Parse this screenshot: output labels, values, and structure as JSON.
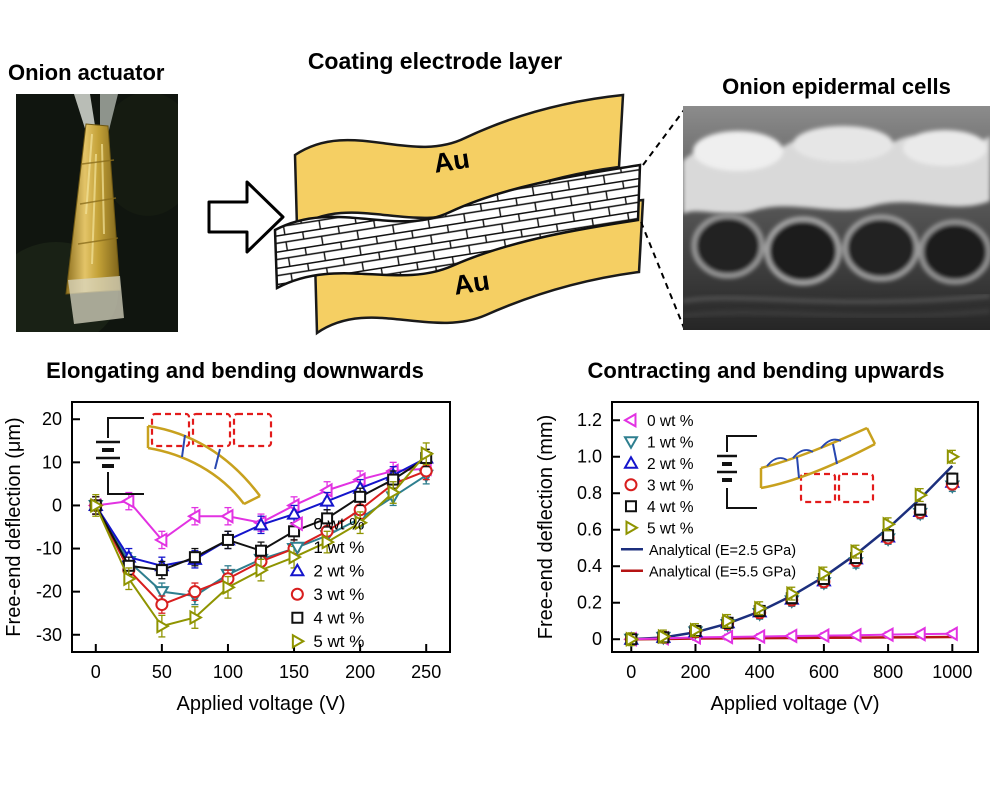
{
  "colors": {
    "gold": "#f5cf63",
    "magenta": "#e232e2",
    "teal": "#2e7f8f",
    "blue": "#1414cc",
    "red": "#d81e1e",
    "black": "#111111",
    "olive": "#8f9400",
    "nav_blue": "#1c2f7d",
    "dark_red": "#b51313"
  },
  "top": {
    "photo_label": "Onion actuator",
    "schematic_title": "Coating electrode layer",
    "au_label_top": "Au",
    "au_label_bottom": "Au",
    "sem_label": "Onion epidermal cells"
  },
  "chart_data": [
    {
      "type": "line",
      "title": "Elongating and bending downwards",
      "xlabel": "Applied voltage (V)",
      "ylabel": "Free-end deflection (μm)",
      "xlim": [
        -18,
        268
      ],
      "ylim": [
        -34,
        24
      ],
      "xticks": [
        "0",
        "50",
        "100",
        "150",
        "200",
        "250"
      ],
      "yticks": [
        "-30",
        "-20",
        "-10",
        "0",
        "10",
        "20"
      ],
      "grid": false,
      "legend_pos": {
        "fx": 0.575,
        "fy": 0.44
      },
      "x": [
        0,
        25,
        50,
        75,
        100,
        125,
        150,
        175,
        200,
        225,
        250
      ],
      "series": [
        {
          "name": "0 wt %",
          "marker": "triangle-left",
          "color_key": "magenta",
          "err": 2,
          "values": [
            0,
            1,
            -8,
            -2.5,
            -2.5,
            -4,
            0,
            3.5,
            6,
            8,
            8.5
          ]
        },
        {
          "name": "1 wt %",
          "marker": "triangle-down",
          "color_key": "teal",
          "err": 2,
          "values": [
            0,
            -13,
            -20,
            -21,
            -16,
            -12.5,
            -10,
            -7,
            -3,
            2,
            7
          ]
        },
        {
          "name": "2 wt %",
          "marker": "triangle-up",
          "color_key": "blue",
          "err": 2,
          "values": [
            0,
            -12,
            -14,
            -12.5,
            -8,
            -4.5,
            -2,
            1,
            4,
            7,
            11
          ]
        },
        {
          "name": "3 wt %",
          "marker": "circle",
          "color_key": "red",
          "err": 2,
          "values": [
            0,
            -15,
            -23,
            -20,
            -17,
            -13,
            -10,
            -6,
            -1,
            5,
            8
          ]
        },
        {
          "name": "4 wt %",
          "marker": "square",
          "color_key": "black",
          "err": 2,
          "values": [
            0,
            -14,
            -15,
            -12,
            -8,
            -10.5,
            -6,
            -3,
            2,
            6,
            11
          ]
        },
        {
          "name": "5 wt %",
          "marker": "triangle-right",
          "color_key": "olive",
          "err": 2.5,
          "values": [
            0,
            -17,
            -28,
            -26,
            -19,
            -15,
            -12,
            -8.5,
            -4,
            3,
            12
          ]
        }
      ]
    },
    {
      "type": "scatter",
      "title": "Contracting and bending upwards",
      "xlabel": "Applied voltage (V)",
      "ylabel": "Free-end deflection (mm)",
      "xlim": [
        -60,
        1080
      ],
      "ylim": [
        -0.07,
        1.3
      ],
      "xticks": [
        "0",
        "200",
        "400",
        "600",
        "800",
        "1000"
      ],
      "yticks": [
        "0",
        "0.2",
        "0.4",
        "0.6",
        "0.8",
        "1.0",
        "1.2"
      ],
      "grid": false,
      "legend_pos": {
        "fx": 0.03,
        "fy": 0.03
      },
      "x": [
        0,
        100,
        200,
        300,
        400,
        500,
        600,
        700,
        800,
        900,
        1000
      ],
      "series": [
        {
          "name": "0 wt %",
          "marker": "triangle-left",
          "color_key": "magenta",
          "err": 0.015,
          "line": true,
          "values": [
            0,
            0.005,
            0.01,
            0.012,
            0.015,
            0.018,
            0.02,
            0.022,
            0.025,
            0.028,
            0.03
          ]
        },
        {
          "name": "1 wt %",
          "marker": "triangle-down",
          "color_key": "teal",
          "err": 0.03,
          "line": false,
          "values": [
            0,
            0.01,
            0.04,
            0.08,
            0.14,
            0.21,
            0.31,
            0.42,
            0.55,
            0.69,
            0.84
          ]
        },
        {
          "name": "2 wt %",
          "marker": "triangle-up",
          "color_key": "blue",
          "err": 0.03,
          "line": false,
          "values": [
            0,
            0.01,
            0.04,
            0.09,
            0.15,
            0.22,
            0.32,
            0.44,
            0.56,
            0.7,
            0.86
          ]
        },
        {
          "name": "3 wt %",
          "marker": "circle",
          "color_key": "red",
          "err": 0.03,
          "line": false,
          "values": [
            0,
            0.01,
            0.04,
            0.085,
            0.145,
            0.215,
            0.315,
            0.43,
            0.555,
            0.695,
            0.85
          ]
        },
        {
          "name": "4 wt %",
          "marker": "square",
          "color_key": "black",
          "err": 0.03,
          "line": false,
          "values": [
            0,
            0.01,
            0.045,
            0.09,
            0.155,
            0.225,
            0.33,
            0.445,
            0.57,
            0.71,
            0.88
          ]
        },
        {
          "name": "5 wt %",
          "marker": "triangle-right",
          "color_key": "olive",
          "err": 0.035,
          "line": false,
          "values": [
            0,
            0.015,
            0.05,
            0.1,
            0.17,
            0.25,
            0.36,
            0.48,
            0.63,
            0.79,
            1.0
          ]
        }
      ],
      "analytical": [
        {
          "name": "Analytical (E=2.5 GPa)",
          "color_key": "nav_blue",
          "values": [
            0,
            0.0095,
            0.038,
            0.086,
            0.152,
            0.238,
            0.342,
            0.466,
            0.608,
            0.77,
            0.95
          ]
        },
        {
          "name": "Analytical (E=5.5 GPa)",
          "color_key": "dark_red",
          "values": [
            0,
            0.001,
            0.004,
            0.005,
            0.006,
            0.007,
            0.008,
            0.009,
            0.01,
            0.011,
            0.012
          ]
        }
      ]
    }
  ]
}
